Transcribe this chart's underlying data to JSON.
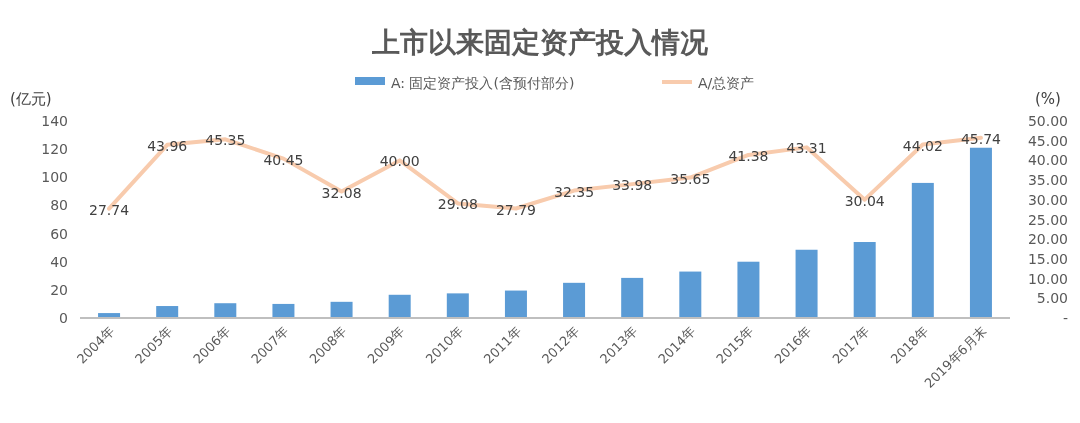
{
  "chart_data": {
    "type": "bar",
    "title": "上市以来固定资产投入情况",
    "ylabel": "(亿元)",
    "y2label": "(%)",
    "categories": [
      "2004年",
      "2005年",
      "2006年",
      "2007年",
      "2008年",
      "2009年",
      "2010年",
      "2011年",
      "2012年",
      "2013年",
      "2014年",
      "2015年",
      "2016年",
      "2017年",
      "2018年",
      "2019年6月末"
    ],
    "series": [
      {
        "name": "A:  固定资产投入(含预付部分)",
        "color": "#5b9bd5",
        "values": [
          3.5,
          8.5,
          10.5,
          10,
          11.5,
          16.5,
          17.5,
          19.5,
          25,
          28.5,
          33,
          40,
          48.5,
          54,
          96,
          121
        ]
      },
      {
        "name": "A/总资产",
        "type": "line",
        "axis": "y2",
        "color": "#f8cbad",
        "values": [
          27.74,
          43.96,
          45.35,
          40.45,
          32.08,
          40.0,
          29.08,
          27.79,
          32.35,
          33.98,
          35.65,
          41.38,
          43.31,
          30.04,
          44.02,
          45.74
        ],
        "value_labels": [
          "27.74",
          "43.96",
          "45.35",
          "40.45",
          "32.08",
          "40.00",
          "29.08",
          "27.79",
          "32.35",
          "33.98",
          "35.65",
          "41.38",
          "43.31",
          "30.04",
          "44.02",
          "45.74"
        ]
      }
    ],
    "ylim": [
      0,
      140
    ],
    "yticks": [
      0,
      20,
      40,
      60,
      80,
      100,
      120,
      140
    ],
    "y2lim": [
      0,
      50
    ],
    "y2ticks": [
      {
        "value": 0,
        "label": "-"
      },
      {
        "value": 5,
        "label": "5.00"
      },
      {
        "value": 10,
        "label": "10.00"
      },
      {
        "value": 15,
        "label": "15.00"
      },
      {
        "value": 20,
        "label": "20.00"
      },
      {
        "value": 25,
        "label": "25.00"
      },
      {
        "value": 30,
        "label": "30.00"
      },
      {
        "value": 35,
        "label": "35.00"
      },
      {
        "value": 40,
        "label": "40.00"
      },
      {
        "value": 45,
        "label": "45.00"
      },
      {
        "value": 50,
        "label": "50.00"
      }
    ],
    "legend": "top",
    "grid": false
  }
}
